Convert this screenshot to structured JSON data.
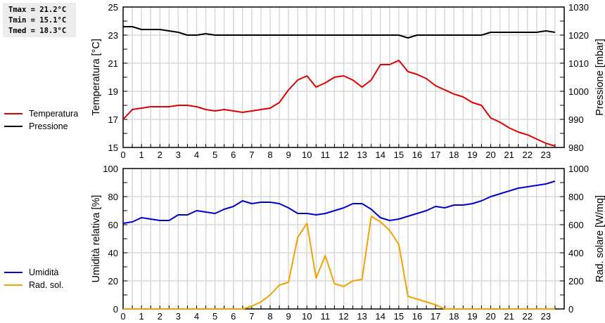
{
  "stats": {
    "tmax": "Tmax = 21.2°C",
    "tmin": "Tmin = 15.1°C",
    "tmed": "Tmed = 18.3°C"
  },
  "legend_top": [
    {
      "label": "Temperatura",
      "color": "#e00000"
    },
    {
      "label": "Pressione",
      "color": "#000000"
    }
  ],
  "legend_bottom": [
    {
      "label": "Umidità",
      "color": "#0000d0"
    },
    {
      "label": "Rad. sol.",
      "color": "#f5a000"
    }
  ],
  "chart_data": [
    {
      "type": "line",
      "title": "",
      "xlabel": "",
      "ylabel": "Temperatura [°C]",
      "y2label": "Pressione [mbar]",
      "ylim": [
        15,
        25
      ],
      "y2lim": [
        980,
        1030
      ],
      "yticks": [
        15,
        17,
        19,
        21,
        23,
        25
      ],
      "y2ticks": [
        980,
        990,
        1000,
        1010,
        1020,
        1030
      ],
      "xticks": [
        0,
        1,
        2,
        3,
        4,
        5,
        6,
        7,
        8,
        9,
        10,
        11,
        12,
        13,
        14,
        15,
        16,
        17,
        18,
        19,
        20,
        21,
        22,
        23
      ],
      "grid": true,
      "legend_position": "left",
      "x": [
        0,
        0.5,
        1,
        1.5,
        2,
        2.5,
        3,
        3.5,
        4,
        4.5,
        5,
        5.5,
        6,
        6.5,
        7,
        7.5,
        8,
        8.5,
        9,
        9.5,
        10,
        10.5,
        11,
        11.5,
        12,
        12.5,
        13,
        13.5,
        14,
        14.5,
        15,
        15.5,
        16,
        16.5,
        17,
        17.5,
        18,
        18.5,
        19,
        19.5,
        20,
        20.5,
        21,
        21.5,
        22,
        22.5,
        23,
        23.5
      ],
      "series": [
        {
          "name": "Temperatura",
          "axis": "left",
          "color": "#e00000",
          "values": [
            17.0,
            17.7,
            17.8,
            17.9,
            17.9,
            17.9,
            18.0,
            18.0,
            17.9,
            17.7,
            17.6,
            17.7,
            17.6,
            17.5,
            17.6,
            17.7,
            17.8,
            18.2,
            19.1,
            19.8,
            20.1,
            19.3,
            19.6,
            20.0,
            20.1,
            19.8,
            19.3,
            19.8,
            20.9,
            20.9,
            21.2,
            20.4,
            20.2,
            19.9,
            19.4,
            19.1,
            18.8,
            18.6,
            18.2,
            18.0,
            17.1,
            16.8,
            16.4,
            16.1,
            15.9,
            15.6,
            15.3,
            15.1
          ]
        },
        {
          "name": "Pressione",
          "axis": "right",
          "color": "#000000",
          "values": [
            1023,
            1023,
            1022,
            1022,
            1022,
            1021.5,
            1021,
            1020,
            1020,
            1020.5,
            1020,
            1020,
            1020,
            1020,
            1020,
            1020,
            1020,
            1020,
            1020,
            1020,
            1020,
            1020,
            1020,
            1020,
            1020,
            1020,
            1020,
            1020,
            1020,
            1020,
            1020,
            1019,
            1020,
            1020,
            1020,
            1020,
            1020,
            1020,
            1020,
            1020,
            1021,
            1021,
            1021,
            1021,
            1021,
            1021,
            1021.5,
            1021
          ]
        }
      ]
    },
    {
      "type": "line",
      "title": "",
      "xlabel": "",
      "ylabel": "Umidità relativa [%]",
      "y2label": "Rad. solare [W/mq]",
      "ylim": [
        0,
        100
      ],
      "y2lim": [
        0,
        1000
      ],
      "yticks": [
        0,
        20,
        40,
        60,
        80,
        100
      ],
      "y2ticks": [
        0,
        200,
        400,
        600,
        800,
        1000
      ],
      "xticks": [
        0,
        1,
        2,
        3,
        4,
        5,
        6,
        7,
        8,
        9,
        10,
        11,
        12,
        13,
        14,
        15,
        16,
        17,
        18,
        19,
        20,
        21,
        22,
        23
      ],
      "grid": true,
      "legend_position": "left",
      "x": [
        0,
        0.5,
        1,
        1.5,
        2,
        2.5,
        3,
        3.5,
        4,
        4.5,
        5,
        5.5,
        6,
        6.5,
        7,
        7.5,
        8,
        8.5,
        9,
        9.5,
        10,
        10.5,
        11,
        11.5,
        12,
        12.5,
        13,
        13.5,
        14,
        14.5,
        15,
        15.5,
        16,
        16.5,
        17,
        17.5,
        18,
        18.5,
        19,
        19.5,
        20,
        20.5,
        21,
        21.5,
        22,
        22.5,
        23,
        23.5
      ],
      "series": [
        {
          "name": "Umidità",
          "axis": "left",
          "color": "#0000d0",
          "values": [
            61,
            62,
            65,
            64,
            63,
            63,
            67,
            67,
            70,
            69,
            68,
            71,
            73,
            77,
            75,
            76,
            76,
            75,
            72,
            68,
            68,
            67,
            68,
            70,
            72,
            75,
            75,
            71,
            65,
            63,
            64,
            66,
            68,
            70,
            73,
            72,
            74,
            74,
            75,
            77,
            80,
            82,
            84,
            86,
            87,
            88,
            89,
            91
          ]
        },
        {
          "name": "Rad. sol.",
          "axis": "right",
          "color": "#f5a000",
          "values": [
            0,
            0,
            0,
            0,
            0,
            0,
            0,
            0,
            0,
            0,
            0,
            0,
            0,
            0,
            20,
            50,
            100,
            170,
            190,
            510,
            610,
            220,
            380,
            180,
            160,
            200,
            210,
            660,
            620,
            560,
            460,
            90,
            70,
            50,
            30,
            0,
            0,
            0,
            0,
            0,
            0,
            0,
            0,
            0,
            0,
            0,
            0,
            0
          ]
        }
      ]
    }
  ]
}
